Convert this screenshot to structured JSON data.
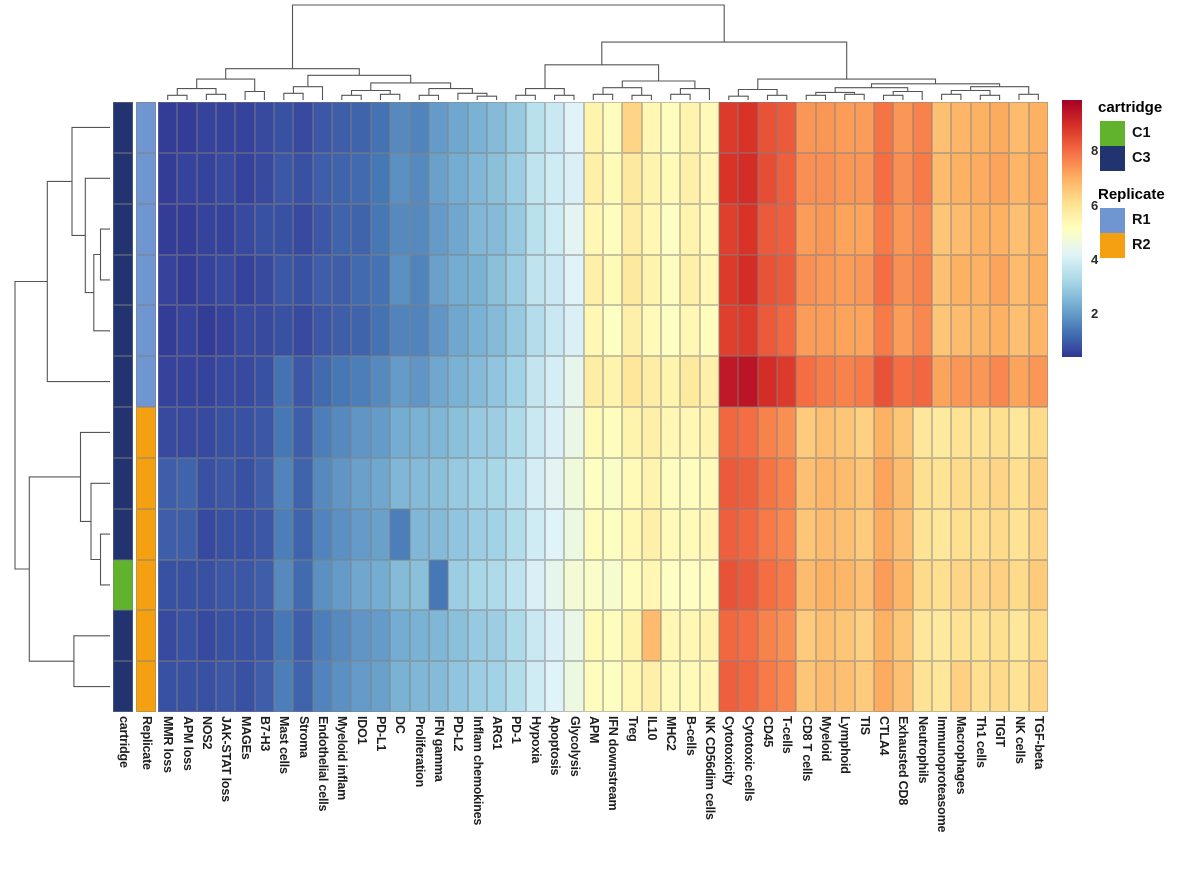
{
  "chart_data": {
    "type": "heatmap",
    "description": "Clustered heatmap (pheatmap style) of immune signature scores with row/column dendrograms and row annotations",
    "columns": [
      "MMR loss",
      "APM loss",
      "NOS2",
      "JAK-STAT loss",
      "MAGEs",
      "B7-H3",
      "Mast cells",
      "Stroma",
      "Endothelial cells",
      "Myeloid inflam",
      "IDO1",
      "PD-L1",
      "DC",
      "Proliferation",
      "IFN gamma",
      "PD-L2",
      "Inflam chemokines",
      "ARG1",
      "PD-1",
      "Hypoxia",
      "Apoptosis",
      "Glycolysis",
      "APM",
      "IFN downstream",
      "Treg",
      "IL10",
      "MHC2",
      "B-cells",
      "NK CD56dim cells",
      "Cytotoxicity",
      "Cytotoxic cells",
      "CD45",
      "T-cells",
      "CD8 T cells",
      "Myeloid",
      "Lymphoid",
      "TIS",
      "CTLA4",
      "Exhausted CD8",
      "Neutrophils",
      "Immunoproteasome",
      "Macrophages",
      "Th1 cells",
      "TIGIT",
      "NK cells",
      "TGF-beta"
    ],
    "annotation_column_labels": [
      "cartridge",
      "Replicate"
    ],
    "row_annotations": {
      "cartridge": [
        "C3",
        "C3",
        "C3",
        "C3",
        "C3",
        "C3",
        "C3",
        "C3",
        "C3",
        "C1",
        "C3",
        "C3"
      ],
      "replicate": [
        "R1",
        "R1",
        "R1",
        "R1",
        "R1",
        "R1",
        "R2",
        "R2",
        "R2",
        "R2",
        "R2",
        "R2"
      ]
    },
    "annotation_colors": {
      "C1": "#61b32e",
      "C3": "#22346f",
      "R1": "#7096d2",
      "R2": "#f5a011"
    },
    "values": [
      [
        0.5,
        0.5,
        0.6,
        0.6,
        0.6,
        0.7,
        0.8,
        0.7,
        0.9,
        1.0,
        1.1,
        1.3,
        1.7,
        1.6,
        2.0,
        2.2,
        2.4,
        2.6,
        2.9,
        3.5,
        3.8,
        4.2,
        5.5,
        5.2,
        6.3,
        5.4,
        5.2,
        5.5,
        5.3,
        8.8,
        8.9,
        8.4,
        8.3,
        7.4,
        7.4,
        7.3,
        7.3,
        7.9,
        7.4,
        7.7,
        6.7,
        6.9,
        7.0,
        7.1,
        6.8,
        7.0
      ],
      [
        0.5,
        0.6,
        0.6,
        0.7,
        0.6,
        0.7,
        0.9,
        0.8,
        1.0,
        1.1,
        1.2,
        1.4,
        1.8,
        1.7,
        2.1,
        2.3,
        2.5,
        2.7,
        3.0,
        3.6,
        3.9,
        4.1,
        5.6,
        5.3,
        5.8,
        5.5,
        5.3,
        5.6,
        5.4,
        8.9,
        9.0,
        8.5,
        8.2,
        7.5,
        7.5,
        7.4,
        7.4,
        8.0,
        7.5,
        7.8,
        6.8,
        7.0,
        7.1,
        7.2,
        6.9,
        7.1
      ],
      [
        0.5,
        0.5,
        0.6,
        0.6,
        0.7,
        0.8,
        0.8,
        0.7,
        0.9,
        1.1,
        1.1,
        1.4,
        1.7,
        1.7,
        2.0,
        2.2,
        2.5,
        2.6,
        2.9,
        3.5,
        3.9,
        4.3,
        5.4,
        5.2,
        5.7,
        5.4,
        5.1,
        5.5,
        5.3,
        8.7,
        8.9,
        8.3,
        8.2,
        7.3,
        7.4,
        7.2,
        7.2,
        7.8,
        7.4,
        7.6,
        6.6,
        6.8,
        7.0,
        7.0,
        6.7,
        6.9
      ],
      [
        0.6,
        0.5,
        0.6,
        0.7,
        0.6,
        0.7,
        0.9,
        0.8,
        1.0,
        1.0,
        1.2,
        1.3,
        1.8,
        1.6,
        2.1,
        2.3,
        2.4,
        2.7,
        3.0,
        3.6,
        3.8,
        4.2,
        5.6,
        5.3,
        5.8,
        5.5,
        5.2,
        5.6,
        5.4,
        8.8,
        9.0,
        8.4,
        8.3,
        7.5,
        7.4,
        7.3,
        7.4,
        8.0,
        7.5,
        7.7,
        6.7,
        7.0,
        7.0,
        7.2,
        6.8,
        7.0
      ],
      [
        0.5,
        0.6,
        0.5,
        0.6,
        0.7,
        0.7,
        0.8,
        0.7,
        0.9,
        1.0,
        1.1,
        1.3,
        1.6,
        1.6,
        1.9,
        2.2,
        2.4,
        2.6,
        2.9,
        3.4,
        3.8,
        4.1,
        5.4,
        5.1,
        5.6,
        5.3,
        5.1,
        5.4,
        5.2,
        8.7,
        8.8,
        8.3,
        8.1,
        7.3,
        7.3,
        7.2,
        7.2,
        7.8,
        7.3,
        7.6,
        6.6,
        6.8,
        6.9,
        7.0,
        6.7,
        6.9
      ],
      [
        0.6,
        0.6,
        0.6,
        0.7,
        0.7,
        0.8,
        1.3,
        0.9,
        1.2,
        1.4,
        1.5,
        1.7,
        2.0,
        1.9,
        2.2,
        2.4,
        2.6,
        2.8,
        3.1,
        3.7,
        4.0,
        4.4,
        5.7,
        5.5,
        5.9,
        5.7,
        5.5,
        5.8,
        5.6,
        9.4,
        9.5,
        9.0,
        8.8,
        8.0,
        7.8,
        7.7,
        7.8,
        8.4,
        8.0,
        8.1,
        7.2,
        7.4,
        7.4,
        7.6,
        7.2,
        7.4
      ],
      [
        0.7,
        0.7,
        0.7,
        0.8,
        0.8,
        0.9,
        1.4,
        1.0,
        1.5,
        1.7,
        1.9,
        2.0,
        2.3,
        2.4,
        2.5,
        2.7,
        2.9,
        3.0,
        3.3,
        3.8,
        4.1,
        4.5,
        5.3,
        5.2,
        5.5,
        5.6,
        5.4,
        5.4,
        5.5,
        8.1,
        8.0,
        7.7,
        7.5,
        6.5,
        6.7,
        6.6,
        6.4,
        7.0,
        6.6,
        5.9,
        5.8,
        6.0,
        6.0,
        6.1,
        5.9,
        6.2
      ],
      [
        1.0,
        1.1,
        0.8,
        0.9,
        0.8,
        1.0,
        1.6,
        1.1,
        1.7,
        1.9,
        2.1,
        2.2,
        2.5,
        2.6,
        2.7,
        2.9,
        3.1,
        3.2,
        3.5,
        4.0,
        4.3,
        4.7,
        5.1,
        5.0,
        5.3,
        5.5,
        5.2,
        5.2,
        5.3,
        8.3,
        8.2,
        7.9,
        7.7,
        6.7,
        6.9,
        6.8,
        6.6,
        7.2,
        6.8,
        6.1,
        6.0,
        6.2,
        6.2,
        6.3,
        6.1,
        6.4
      ],
      [
        1.0,
        1.0,
        0.7,
        0.8,
        0.8,
        0.9,
        1.5,
        1.1,
        1.6,
        1.8,
        2.0,
        2.1,
        1.5,
        2.5,
        2.6,
        2.8,
        3.0,
        3.1,
        3.4,
        3.9,
        4.2,
        4.6,
        5.2,
        5.1,
        5.4,
        5.6,
        5.3,
        5.3,
        5.4,
        8.2,
        8.1,
        7.8,
        7.6,
        6.6,
        6.8,
        6.7,
        6.5,
        7.1,
        6.7,
        6.0,
        5.9,
        6.1,
        6.1,
        6.2,
        6.0,
        6.3
      ],
      [
        0.8,
        0.8,
        0.8,
        0.9,
        0.9,
        1.0,
        1.7,
        1.2,
        1.8,
        2.0,
        2.2,
        2.3,
        2.6,
        2.7,
        1.4,
        3.0,
        3.2,
        3.3,
        3.6,
        4.1,
        4.4,
        4.8,
        5.0,
        4.9,
        5.2,
        5.4,
        5.1,
        5.1,
        5.2,
        8.4,
        8.3,
        8.0,
        7.8,
        6.8,
        7.0,
        6.9,
        6.7,
        7.3,
        6.9,
        6.2,
        6.1,
        6.3,
        6.3,
        6.4,
        6.2,
        6.5
      ],
      [
        0.7,
        0.8,
        0.7,
        0.8,
        0.8,
        0.9,
        1.4,
        1.0,
        1.5,
        1.7,
        1.9,
        2.0,
        2.3,
        2.4,
        2.5,
        2.7,
        2.9,
        3.0,
        3.3,
        3.8,
        4.1,
        4.5,
        5.3,
        5.2,
        5.5,
        6.8,
        5.4,
        5.4,
        5.5,
        8.1,
        8.0,
        7.7,
        7.5,
        6.5,
        6.7,
        6.6,
        6.4,
        7.0,
        6.6,
        5.9,
        5.8,
        6.0,
        6.0,
        6.1,
        5.9,
        6.2
      ],
      [
        0.8,
        0.8,
        0.8,
        0.9,
        0.8,
        1.0,
        1.5,
        1.1,
        1.6,
        1.8,
        2.0,
        2.1,
        2.4,
        2.5,
        2.6,
        2.8,
        3.0,
        3.1,
        3.4,
        3.9,
        4.2,
        4.6,
        5.2,
        5.1,
        5.4,
        5.6,
        5.3,
        5.3,
        5.4,
        8.2,
        8.1,
        7.8,
        7.6,
        6.6,
        6.8,
        6.7,
        6.5,
        7.1,
        6.7,
        6.0,
        5.9,
        6.4,
        6.1,
        6.2,
        6.0,
        6.3
      ]
    ],
    "colormap": {
      "name": "RdYlBu reversed (blue = low, red = high)",
      "stops": [
        "#313695",
        "#4575b4",
        "#74add1",
        "#abd9e9",
        "#e0f3f8",
        "#ffffbf",
        "#fee090",
        "#fdae61",
        "#f46d43",
        "#d73027",
        "#a50026"
      ],
      "vmin": 0.4,
      "vmax": 9.9
    },
    "colorbar_ticks": [
      8,
      6,
      4,
      2
    ],
    "row_dendrogram": {
      "h": 1.0,
      "c": [
        {
          "h": 0.66,
          "c": [
            {
              "h": 0.4,
              "c": [
                0,
                {
                  "h": 0.26,
                  "c": [
                    1,
                    {
                      "h": 0.17,
                      "c": [
                        {
                          "h": 0.1,
                          "c": [
                            2,
                            3
                          ]
                        },
                        4
                      ]
                    }
                  ]
                }
              ]
            },
            5
          ]
        },
        {
          "h": 0.85,
          "c": [
            {
              "h": 0.31,
              "c": [
                6,
                {
                  "h": 0.2,
                  "c": [
                    7,
                    {
                      "h": 0.1,
                      "c": [
                        8,
                        9
                      ]
                    }
                  ]
                }
              ]
            },
            {
              "h": 0.38,
              "c": [
                10,
                11
              ]
            }
          ]
        }
      ]
    },
    "column_dendrogram": {
      "h": 1.0,
      "c": [
        {
          "h": 0.33,
          "c": [
            {
              "h": 0.22,
              "c": [
                {
                  "h": 0.12,
                  "c": [
                    {
                      "h": 0.05,
                      "c": [
                        0,
                        1
                      ]
                    },
                    {
                      "h": 0.06,
                      "c": [
                        2,
                        3
                      ]
                    }
                  ]
                },
                {
                  "h": 0.09,
                  "c": [
                    4,
                    5
                  ]
                }
              ]
            },
            {
              "h": 0.26,
              "c": [
                {
                  "h": 0.14,
                  "c": [
                    {
                      "h": 0.07,
                      "c": [
                        6,
                        7
                      ]
                    },
                    8
                  ]
                },
                {
                  "h": 0.18,
                  "c": [
                    {
                      "h": 0.1,
                      "c": [
                        {
                          "h": 0.05,
                          "c": [
                            9,
                            10
                          ]
                        },
                        {
                          "h": 0.06,
                          "c": [
                            11,
                            12
                          ]
                        }
                      ]
                    },
                    {
                      "h": 0.12,
                      "c": [
                        {
                          "h": 0.05,
                          "c": [
                            13,
                            14
                          ]
                        },
                        {
                          "h": 0.07,
                          "c": [
                            15,
                            {
                              "h": 0.04,
                              "c": [
                                16,
                                17
                              ]
                            }
                          ]
                        }
                      ]
                    }
                  ]
                }
              ]
            }
          ]
        },
        {
          "h": 0.61,
          "c": [
            {
              "h": 0.37,
              "c": [
                {
                  "h": 0.12,
                  "c": [
                    {
                      "h": 0.05,
                      "c": [
                        18,
                        19
                      ]
                    },
                    {
                      "h": 0.05,
                      "c": [
                        20,
                        21
                      ]
                    }
                  ]
                },
                {
                  "h": 0.2,
                  "c": [
                    {
                      "h": 0.13,
                      "c": [
                        {
                          "h": 0.06,
                          "c": [
                            22,
                            23
                          ]
                        },
                        {
                          "h": 0.05,
                          "c": [
                            24,
                            25
                          ]
                        }
                      ]
                    },
                    {
                      "h": 0.12,
                      "c": [
                        {
                          "h": 0.06,
                          "c": [
                            26,
                            27
                          ]
                        },
                        28
                      ]
                    }
                  ]
                }
              ]
            },
            {
              "h": 0.22,
              "c": [
                {
                  "h": 0.11,
                  "c": [
                    {
                      "h": 0.04,
                      "c": [
                        29,
                        30
                      ]
                    },
                    {
                      "h": 0.05,
                      "c": [
                        31,
                        32
                      ]
                    }
                  ]
                },
                {
                  "h": 0.17,
                  "c": [
                    {
                      "h": 0.13,
                      "c": [
                        {
                          "h": 0.08,
                          "c": [
                            {
                              "h": 0.05,
                              "c": [
                                33,
                                34
                              ]
                            },
                            {
                              "h": 0.06,
                              "c": [
                                35,
                                36
                              ]
                            }
                          ]
                        },
                        {
                          "h": 0.09,
                          "c": [
                            {
                              "h": 0.05,
                              "c": [
                                37,
                                38
                              ]
                            },
                            39
                          ]
                        }
                      ]
                    },
                    {
                      "h": 0.14,
                      "c": [
                        {
                          "h": 0.1,
                          "c": [
                            {
                              "h": 0.06,
                              "c": [
                                40,
                                41
                              ]
                            },
                            {
                              "h": 0.05,
                              "c": [
                                42,
                                43
                              ]
                            }
                          ]
                        },
                        {
                          "h": 0.06,
                          "c": [
                            44,
                            45
                          ]
                        }
                      ]
                    }
                  ]
                }
              ]
            }
          ]
        }
      ]
    }
  },
  "legend": {
    "cartridge": {
      "title": "cartridge",
      "items": [
        {
          "label": "C1",
          "color": "#61b32e"
        },
        {
          "label": "C3",
          "color": "#22346f"
        }
      ]
    },
    "replicate": {
      "title": "Replicate",
      "items": [
        {
          "label": "R1",
          "color": "#7096d2"
        },
        {
          "label": "R2",
          "color": "#f5a011"
        }
      ]
    }
  }
}
